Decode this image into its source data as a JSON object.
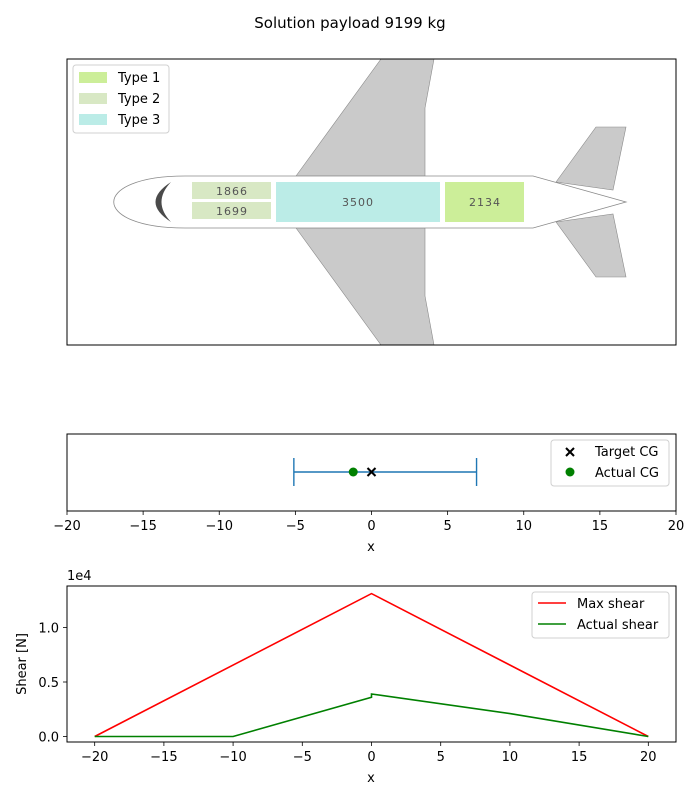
{
  "figure": {
    "title": "Solution payload 9199 kg"
  },
  "chart_data": [
    {
      "type": "diagram",
      "legend": {
        "placement": "top-left",
        "entries": [
          {
            "name": "Type 1",
            "color": "#ccee99"
          },
          {
            "name": "Type 2",
            "color": "#d8e8c4"
          },
          {
            "name": "Type 3",
            "color": "#bbece7"
          }
        ]
      },
      "cargo_boxes": [
        {
          "label": "1866",
          "type": "Type 2",
          "color": "#d8e8c4"
        },
        {
          "label": "1699",
          "type": "Type 2",
          "color": "#d8e8c4"
        },
        {
          "label": "3500",
          "type": "Type 3",
          "color": "#bbece7"
        },
        {
          "label": "2134",
          "type": "Type 1",
          "color": "#ccee99"
        }
      ],
      "colors": {
        "wing": "#cacaca",
        "cockpit": "#4a4a4a",
        "fuselage": "#ffffff"
      }
    },
    {
      "type": "scatter",
      "xlabel": "x",
      "xlim": [
        -20,
        20
      ],
      "xticks": [
        -20,
        -15,
        -10,
        -5,
        0,
        5,
        10,
        15,
        20
      ],
      "xtick_labels": [
        "−20",
        "−15",
        "−10",
        "−5",
        "0",
        "5",
        "10",
        "15",
        "20"
      ],
      "cg_range": [
        -5.1,
        6.9
      ],
      "target_cg": 0.0,
      "actual_cg": -1.2,
      "legend": {
        "placement": "top-right",
        "entries": [
          {
            "name": "Target CG",
            "marker": "x",
            "color": "#000000"
          },
          {
            "name": "Actual CG",
            "marker": "o",
            "color": "#008000"
          }
        ]
      },
      "colors": {
        "range": "#1f77b4"
      }
    },
    {
      "type": "line",
      "xlabel": "x",
      "ylabel": "Shear [N]",
      "offset_text": "1e4",
      "xlim": [
        -22,
        22
      ],
      "ylim": [
        -500,
        13800
      ],
      "xticks": [
        -20,
        -15,
        -10,
        -5,
        0,
        5,
        10,
        15,
        20
      ],
      "xtick_labels": [
        "−20",
        "−15",
        "−10",
        "−5",
        "0",
        "5",
        "10",
        "15",
        "20"
      ],
      "yticks": [
        0,
        5000,
        10000
      ],
      "ytick_labels": [
        "0.0",
        "0.5",
        "1.0"
      ],
      "legend": {
        "placement": "top-right"
      },
      "series": [
        {
          "name": "Max shear",
          "color": "#ff0000",
          "x": [
            -20,
            0,
            20
          ],
          "y": [
            0,
            13100,
            0
          ]
        },
        {
          "name": "Actual shear",
          "color": "#008000",
          "x": [
            -20,
            -10,
            0,
            0,
            10,
            20
          ],
          "y": [
            0,
            0,
            3600,
            3900,
            2100,
            0
          ]
        }
      ]
    }
  ]
}
